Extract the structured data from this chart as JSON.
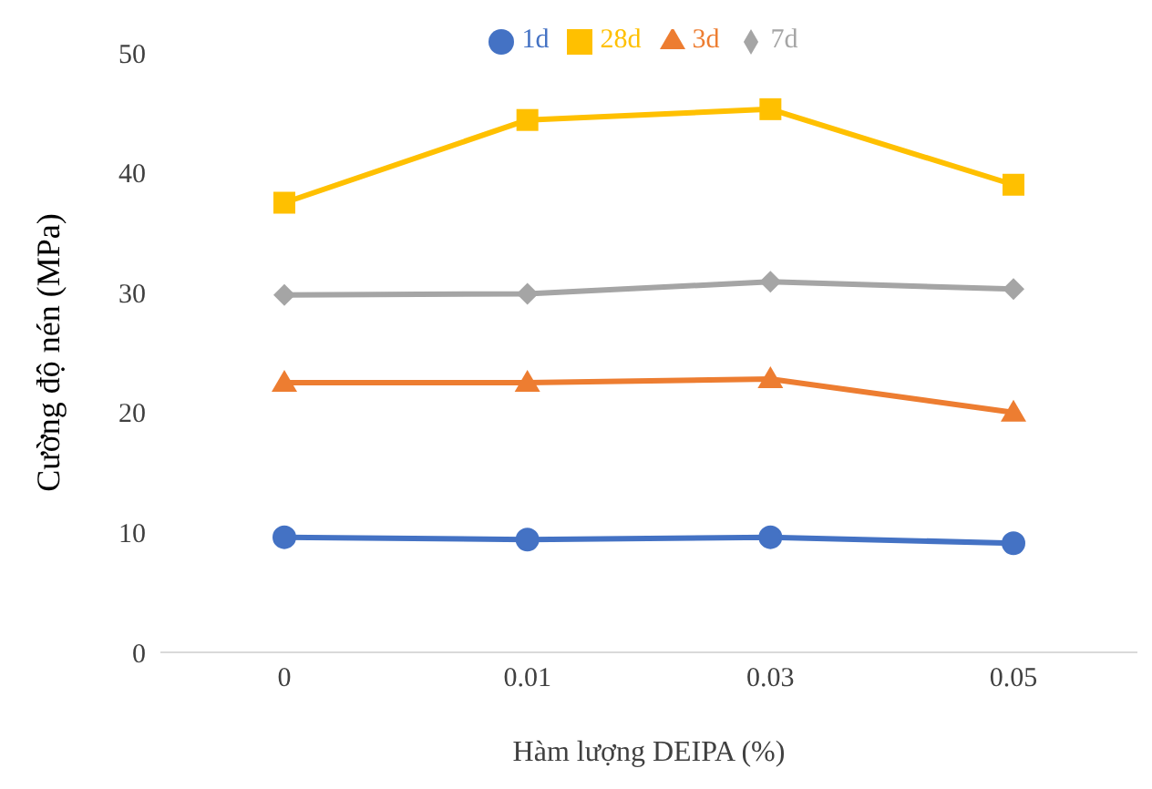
{
  "chart_data": {
    "type": "line",
    "xlabel": "Hàm lượng DEIPA (%)",
    "ylabel": "Cường độ nén (MPa)",
    "categories": [
      "0",
      "0.01",
      "0.03",
      "0.05"
    ],
    "series": [
      {
        "name": "1d",
        "color": "#4472c4",
        "marker": "circle",
        "values": [
          9.6,
          9.4,
          9.6,
          9.1
        ]
      },
      {
        "name": "3d",
        "color": "#ed7d31",
        "marker": "triangle",
        "values": [
          22.5,
          22.5,
          22.8,
          20.0
        ]
      },
      {
        "name": "7d",
        "color": "#a5a5a5",
        "marker": "diamond",
        "values": [
          29.8,
          29.9,
          30.9,
          30.3
        ]
      },
      {
        "name": "28d",
        "color": "#ffc000",
        "marker": "square",
        "values": [
          37.5,
          44.4,
          45.3,
          39.0
        ]
      }
    ],
    "ylim": [
      0,
      50
    ],
    "yticks": [
      0,
      10,
      20,
      30,
      40,
      50
    ],
    "grid": false,
    "legend": "top",
    "line_style": "solid"
  }
}
